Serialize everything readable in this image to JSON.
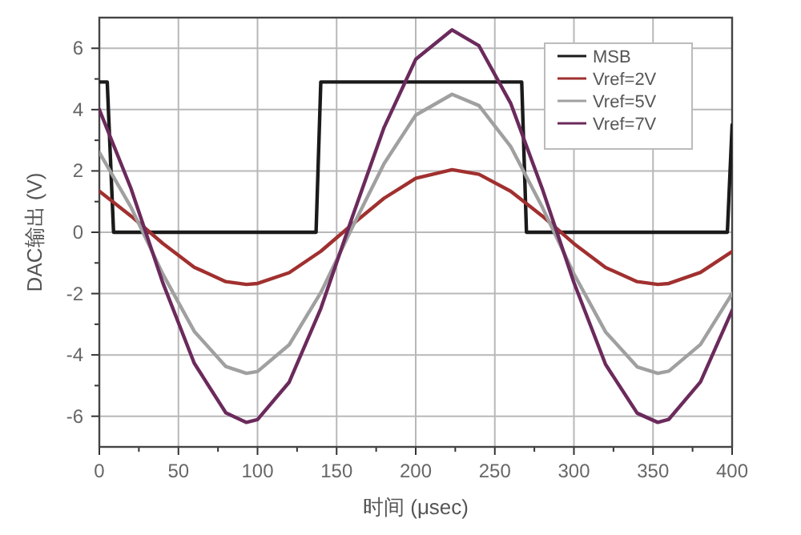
{
  "chart_data": {
    "type": "line",
    "xlabel": "时间 (μsec)",
    "ylabel": "DAC输出 (V)",
    "xlim": [
      0,
      400
    ],
    "ylim": [
      -7,
      7
    ],
    "xticks": [
      0,
      {
        "value": 25,
        "label": null
      },
      50,
      {
        "value": 75,
        "label": null
      },
      100,
      {
        "value": 125,
        "label": null
      },
      150,
      {
        "value": 175,
        "label": null
      },
      200,
      {
        "value": 225,
        "label": null
      },
      250,
      {
        "value": 275,
        "label": null
      },
      300,
      {
        "value": 325,
        "label": null
      },
      350,
      {
        "value": 375,
        "label": null
      },
      400
    ],
    "yticks": [
      -6,
      {
        "value": -5,
        "label": null
      },
      -4,
      {
        "value": -3,
        "label": null
      },
      -2,
      {
        "value": -1,
        "label": null
      },
      0,
      {
        "value": 1,
        "label": null
      },
      2,
      {
        "value": 3,
        "label": null
      },
      4,
      {
        "value": 5,
        "label": null
      },
      6
    ],
    "grid": true,
    "legend": "top right",
    "marker": "none",
    "line_style": "solid",
    "series": [
      {
        "name": "MSB",
        "color": "#1a1a1a",
        "x": [
          0,
          5,
          9,
          137,
          140,
          267,
          270,
          397,
          400
        ],
        "values": [
          4.9,
          4.9,
          0,
          0,
          4.9,
          4.9,
          0,
          0,
          3.5
        ]
      },
      {
        "name": "Vref=2V",
        "color": "#a0302f",
        "x": [
          0,
          20,
          40,
          60,
          80,
          93,
          100,
          120,
          140,
          160,
          180,
          200,
          223,
          240,
          260,
          280,
          300,
          320,
          340,
          353,
          360,
          380,
          400
        ],
        "values": [
          1.34,
          0.53,
          -0.36,
          -1.14,
          -1.61,
          -1.7,
          -1.67,
          -1.32,
          -0.62,
          0.26,
          1.11,
          1.76,
          2.04,
          1.89,
          1.34,
          0.53,
          -0.37,
          -1.15,
          -1.61,
          -1.7,
          -1.67,
          -1.31,
          -0.63
        ]
      },
      {
        "name": "Vref=5V",
        "color": "#a0a0a0",
        "x": [
          0,
          20,
          40,
          60,
          80,
          93,
          100,
          120,
          140,
          160,
          180,
          200,
          223,
          240,
          260,
          280,
          300,
          320,
          340,
          353,
          360,
          380,
          400
        ],
        "values": [
          2.6,
          0.82,
          -1.35,
          -3.23,
          -4.38,
          -4.6,
          -4.54,
          -3.67,
          -1.97,
          0.17,
          2.24,
          3.82,
          4.5,
          4.13,
          2.8,
          0.82,
          -1.36,
          -3.25,
          -4.39,
          -4.6,
          -4.53,
          -3.66,
          -2.0
        ]
      },
      {
        "name": "Vref=7V",
        "color": "#6b2a5c",
        "x": [
          0,
          20,
          40,
          60,
          80,
          93,
          100,
          120,
          140,
          160,
          180,
          200,
          223,
          240,
          260,
          280,
          300,
          320,
          340,
          353,
          360,
          380,
          400
        ],
        "values": [
          4.0,
          1.43,
          -1.63,
          -4.27,
          -5.89,
          -6.2,
          -6.11,
          -4.89,
          -2.49,
          0.51,
          3.42,
          5.64,
          6.6,
          6.08,
          4.21,
          1.42,
          -1.64,
          -4.31,
          -5.9,
          -6.2,
          -6.1,
          -4.88,
          -2.55
        ]
      }
    ]
  }
}
